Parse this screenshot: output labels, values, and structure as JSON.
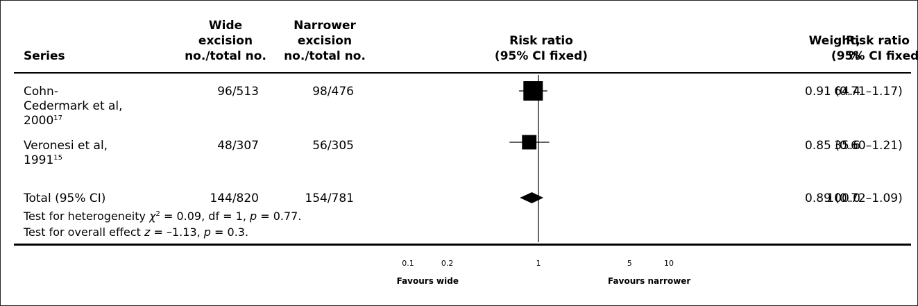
{
  "headers": {
    "series": "Series",
    "wide_1": "Wide",
    "wide_2": "excision",
    "wide_3": "no./total no.",
    "narrow_1": "Narrower",
    "narrow_2": "excision",
    "narrow_3": "no./total no.",
    "rr_plot_1": "Risk ratio",
    "rr_plot_2": "(95% CI fixed)",
    "weight_1": "Weight,",
    "weight_2": "%",
    "rr_1": "Risk ratio",
    "rr_2": "(95% CI fixed)"
  },
  "rows": [
    {
      "name_lines": [
        "Cohn-",
        "Cedermark et al,",
        "2000"
      ],
      "ref": "17",
      "wide": "96/513",
      "narrow": "98/476",
      "weight": "64.4",
      "rr_text": "0.91 (0.71–1.17)"
    },
    {
      "name_lines": [
        "Veronesi et al,",
        "1991"
      ],
      "ref": "15",
      "wide": "48/307",
      "narrow": "56/305",
      "weight": "35.6",
      "rr_text": "0.85 (0.60–1.21)"
    }
  ],
  "total": {
    "name": "Total (95% CI)",
    "wide": "144/820",
    "narrow": "154/781",
    "weight": "100.0",
    "rr_text": "0.89 (0.72–1.09)"
  },
  "footnotes": {
    "heterogeneity_pre": "Test for heterogeneity ",
    "heterogeneity_chi": "χ",
    "heterogeneity_sup": "2",
    "heterogeneity_mid": " = 0.09, df = 1, ",
    "heterogeneity_p": "p",
    "heterogeneity_post": " = 0.77.",
    "overall_pre": "Test for overall effect ",
    "overall_z": "z",
    "overall_mid": " = –1.13, ",
    "overall_p": "p",
    "overall_post": " = 0.3."
  },
  "chart_data": {
    "type": "forest",
    "scale": "log",
    "xlim": [
      0.1,
      10
    ],
    "ticks": [
      {
        "value": 0.1,
        "label": "0.1"
      },
      {
        "value": 0.2,
        "label": "0.2"
      },
      {
        "value": 1,
        "label": "1"
      },
      {
        "value": 5,
        "label": "5"
      },
      {
        "value": 10,
        "label": "10"
      }
    ],
    "left_label": "Favours wide",
    "right_label": "Favours narrower",
    "studies": [
      {
        "rr": 0.91,
        "lo": 0.71,
        "hi": 1.17,
        "weight": 64.4
      },
      {
        "rr": 0.85,
        "lo": 0.6,
        "hi": 1.21,
        "weight": 35.6
      }
    ],
    "total": {
      "rr": 0.89,
      "lo": 0.72,
      "hi": 1.09,
      "weight": 100.0
    }
  }
}
